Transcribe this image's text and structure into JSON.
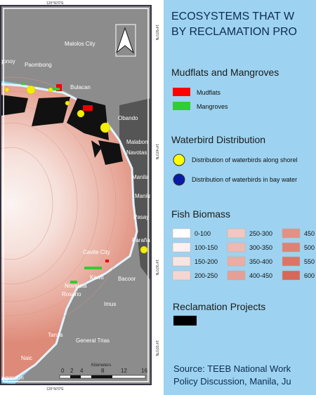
{
  "title": [
    "ECOSYSTEMS THAT W",
    "BY RECLAMATION PRO"
  ],
  "legend": {
    "mudflats_mangroves": {
      "heading": "Mudflats and Mangroves",
      "items": [
        "Mudflats",
        "Mangroves"
      ]
    },
    "waterbirds": {
      "heading": "Waterbird Distribution",
      "items": [
        "Distribution of waterbirds along shorel",
        "Distribution of waterbirds in bay water"
      ]
    },
    "fish_biomass": {
      "heading": "Fish Biomass",
      "classes": [
        "0-100",
        "100-150",
        "150-200",
        "200-250",
        "250-300",
        "300-350",
        "350-400",
        "400-450",
        "450",
        "500",
        "550",
        "600"
      ]
    },
    "reclamation": {
      "heading": "Reclamation Projects"
    }
  },
  "source": [
    "Source: TEEB National Work",
    "Policy Discussion, Manila, Ju"
  ],
  "map": {
    "places": [
      "Malolos City",
      "Paombong",
      "gonoy",
      "Bulacan",
      "Obando",
      "Malabon",
      "Navotas",
      "Manila",
      "Manila",
      "Pasay City",
      "Parañaque",
      "Cavite City",
      "Kawit",
      "Bacoor",
      "Noveleta",
      "Rosario",
      "Imus",
      "Tanza",
      "General Trias",
      "Naic",
      "ragondon"
    ],
    "longitude": [
      "120°50'0\"E",
      "120°50'0\"E"
    ],
    "latitude": [
      "14°50'0\"N",
      "14°40'0\"N",
      "14°30'0\"N",
      "14°20'0\"N"
    ],
    "scale": {
      "ticks": [
        "0",
        "2",
        "4",
        "8",
        "12",
        "16"
      ],
      "unit": "Kilometers"
    }
  }
}
